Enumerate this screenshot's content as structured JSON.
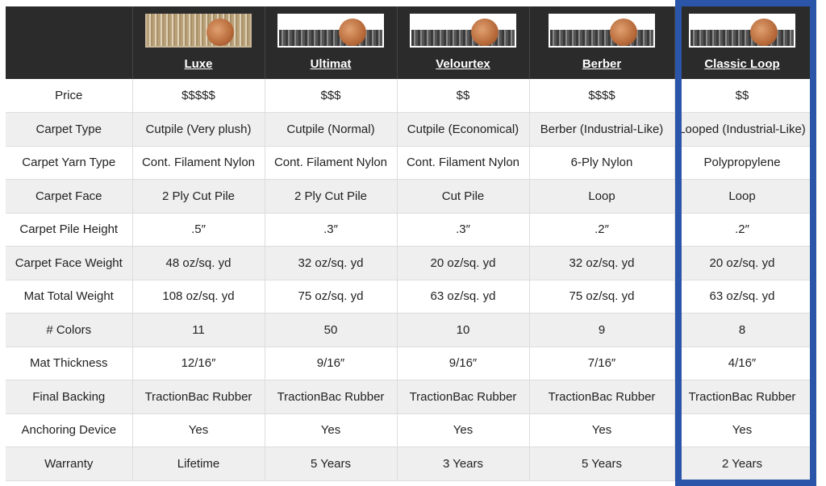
{
  "highlight_color": "#2a55a8",
  "products": [
    {
      "name": "Luxe",
      "image": "luxe-carpet-sample"
    },
    {
      "name": "Ultimat",
      "image": "ultimat-carpet-sample"
    },
    {
      "name": "Velourtex",
      "image": "velourtex-carpet-sample"
    },
    {
      "name": "Berber",
      "image": "berber-carpet-sample"
    },
    {
      "name": "Classic Loop",
      "image": "classic-loop-carpet-sample"
    }
  ],
  "rows": [
    {
      "label": "Price",
      "values": [
        "$$$$$",
        "$$$",
        "$$",
        "$$$$",
        "$$"
      ]
    },
    {
      "label": "Carpet Type",
      "values": [
        "Cutpile (Very plush)",
        "Cutpile (Normal)",
        "Cutpile (Economical)",
        "Berber (Industrial-Like)",
        "Looped (Industrial-Like)"
      ]
    },
    {
      "label": "Carpet Yarn Type",
      "values": [
        "Cont. Filament Nylon",
        "Cont. Filament Nylon",
        "Cont. Filament Nylon",
        "6-Ply Nylon",
        "Polypropylene"
      ]
    },
    {
      "label": "Carpet Face",
      "values": [
        "2 Ply Cut Pile",
        "2 Ply Cut Pile",
        "Cut Pile",
        "Loop",
        "Loop"
      ]
    },
    {
      "label": "Carpet Pile Height",
      "values": [
        ".5″",
        ".3″",
        ".3″",
        ".2″",
        ".2″"
      ]
    },
    {
      "label": "Carpet Face Weight",
      "values": [
        "48 oz/sq. yd",
        "32 oz/sq. yd",
        "20 oz/sq. yd",
        "32 oz/sq. yd",
        "20 oz/sq. yd"
      ]
    },
    {
      "label": "Mat Total Weight",
      "values": [
        "108 oz/sq. yd",
        "75 oz/sq. yd",
        "63 oz/sq. yd",
        "75 oz/sq. yd",
        "63 oz/sq. yd"
      ]
    },
    {
      "label": "# Colors",
      "values": [
        "11",
        "50",
        "10",
        "9",
        "8"
      ]
    },
    {
      "label": "Mat Thickness",
      "values": [
        "12/16″",
        "9/16″",
        "9/16″",
        "7/16″",
        "4/16″"
      ]
    },
    {
      "label": "Final Backing",
      "values": [
        "TractionBac Rubber",
        "TractionBac Rubber",
        "TractionBac Rubber",
        "TractionBac Rubber",
        "TractionBac Rubber"
      ]
    },
    {
      "label": "Anchoring Device",
      "values": [
        "Yes",
        "Yes",
        "Yes",
        "Yes",
        "Yes"
      ]
    },
    {
      "label": "Warranty",
      "values": [
        "Lifetime",
        "5 Years",
        "3 Years",
        "5 Years",
        "2 Years"
      ]
    }
  ]
}
